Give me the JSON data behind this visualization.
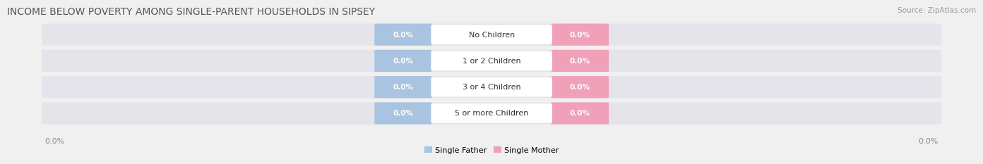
{
  "title": "INCOME BELOW POVERTY AMONG SINGLE-PARENT HOUSEHOLDS IN SIPSEY",
  "source_text": "Source: ZipAtlas.com",
  "categories": [
    "No Children",
    "1 or 2 Children",
    "3 or 4 Children",
    "5 or more Children"
  ],
  "single_father_values": [
    "0.0%",
    "0.0%",
    "0.0%",
    "0.0%"
  ],
  "single_mother_values": [
    "0.0%",
    "0.0%",
    "0.0%",
    "0.0%"
  ],
  "father_color": "#a8c4e0",
  "mother_color": "#f0a0b8",
  "bar_bg_color": "#e4e4ea",
  "title_fontsize": 10,
  "source_fontsize": 7.5,
  "tick_fontsize": 8,
  "category_fontsize": 8,
  "value_fontsize": 7.5,
  "axis_label_left": "0.0%",
  "axis_label_right": "0.0%",
  "legend_father": "Single Father",
  "legend_mother": "Single Mother",
  "background_color": "#f0f0f0"
}
